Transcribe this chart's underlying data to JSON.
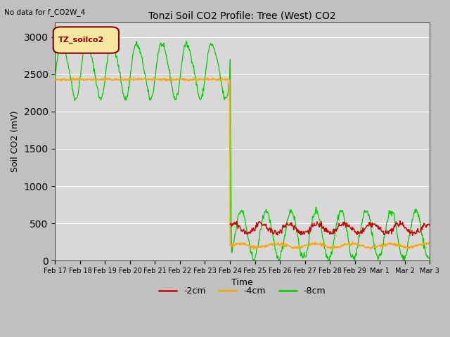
{
  "title": "Tonzi Soil CO2 Profile: Tree (West) CO2",
  "no_data_text": "No data for f_CO2W_4",
  "xlabel": "Time",
  "ylabel": "Soil CO2 (mV)",
  "ylim": [
    0,
    3200
  ],
  "yticks": [
    0,
    500,
    1000,
    1500,
    2000,
    2500,
    3000
  ],
  "legend_label": "TZ_soilco2",
  "bg_color": "#d8d8d8",
  "fig_bg_color": "#c8c8c8",
  "line_colors": {
    "2cm": "#cc0000",
    "4cm": "#ffa500",
    "8cm": "#00cc00"
  },
  "legend_items": [
    {
      "label": "-2cm",
      "color": "#cc0000"
    },
    {
      "label": "-4cm",
      "color": "#ffa500"
    },
    {
      "label": "-8cm",
      "color": "#00cc00"
    }
  ],
  "tick_labels": [
    "Feb 17",
    "Feb 18",
    "Feb 19",
    "Feb 20",
    "Feb 21",
    "Feb 22",
    "Feb 23",
    "Feb 24",
    "Feb 25",
    "Feb 26",
    "Feb 27",
    "Feb 28",
    "Feb 29",
    "Mar 1",
    "Mar 2",
    "Mar 3"
  ]
}
